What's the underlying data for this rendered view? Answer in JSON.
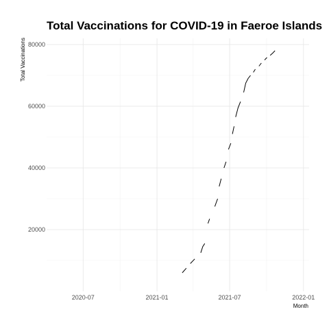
{
  "chart_data": {
    "type": "line",
    "title": "Total Vaccinations for COVID-19 in Faeroe Islands",
    "xlabel": "Month",
    "ylabel": "Total Vaccinations",
    "x_ticks": [
      "2020-07",
      "2021-01",
      "2021-07",
      "2022-01"
    ],
    "y_ticks": [
      20000,
      40000,
      60000,
      80000
    ],
    "xlim": [
      "2020-04-01",
      "2022-01-15"
    ],
    "ylim": [
      0,
      82000
    ],
    "grid": true,
    "legend": "none",
    "series": [
      {
        "segments": [
          {
            "x": [
              "2021-03-05",
              "2021-03-15"
            ],
            "y": [
              6000,
              7500
            ]
          },
          {
            "x": [
              "2021-03-25",
              "2021-04-05"
            ],
            "y": [
              9000,
              10500
            ]
          },
          {
            "x": [
              "2021-04-20",
              "2021-04-25",
              "2021-04-30"
            ],
            "y": [
              12500,
              14500,
              15500
            ]
          },
          {
            "x": [
              "2021-05-08",
              "2021-05-12"
            ],
            "y": [
              22000,
              23500
            ]
          },
          {
            "x": [
              "2021-05-25",
              "2021-06-01"
            ],
            "y": [
              27500,
              30000
            ]
          },
          {
            "x": [
              "2021-06-05",
              "2021-06-10"
            ],
            "y": [
              34000,
              36500
            ]
          },
          {
            "x": [
              "2021-06-17",
              "2021-06-22"
            ],
            "y": [
              40000,
              42000
            ]
          },
          {
            "x": [
              "2021-06-28",
              "2021-07-04"
            ],
            "y": [
              46000,
              48000
            ]
          },
          {
            "x": [
              "2021-07-08",
              "2021-07-12"
            ],
            "y": [
              51000,
              53500
            ]
          },
          {
            "x": [
              "2021-07-16",
              "2021-07-22",
              "2021-07-28"
            ],
            "y": [
              56500,
              59500,
              61500
            ]
          },
          {
            "x": [
              "2021-08-05",
              "2021-08-10",
              "2021-08-16",
              "2021-08-22"
            ],
            "y": [
              64500,
              67500,
              69000,
              70000
            ]
          },
          {
            "x": [
              "2021-08-29",
              "2021-09-03"
            ],
            "y": [
              71000,
              72000
            ]
          },
          {
            "x": [
              "2021-09-12",
              "2021-09-18"
            ],
            "y": [
              73000,
              74000
            ]
          },
          {
            "x": [
              "2021-09-26",
              "2021-10-02"
            ],
            "y": [
              75000,
              75800
            ]
          },
          {
            "x": [
              "2021-10-10",
              "2021-10-16",
              "2021-10-22"
            ],
            "y": [
              76500,
              77200,
              78000
            ]
          }
        ]
      }
    ]
  }
}
